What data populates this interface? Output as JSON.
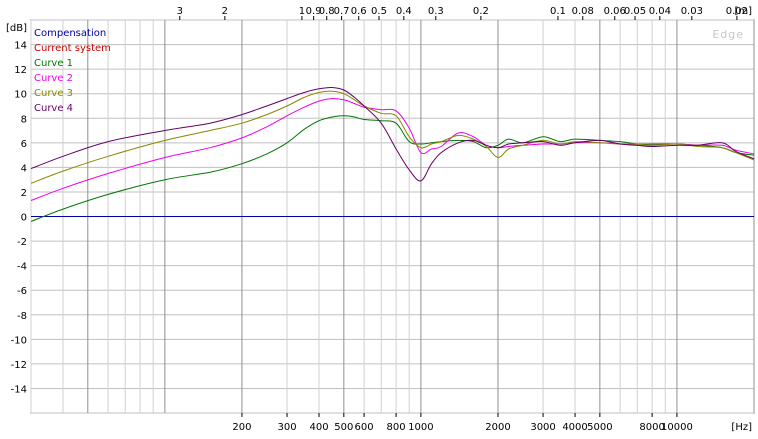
{
  "chart_data": {
    "type": "line",
    "title": "",
    "watermark": "Edge",
    "x_scale": "log",
    "xlabel": "[Hz]",
    "ylabel": "[dB]",
    "top_axis_unit": "[m]",
    "xlim": [
      30,
      20000
    ],
    "ylim": [
      -16,
      16
    ],
    "grid": true,
    "legend_position": "top-left",
    "bottom_ticks": [
      {
        "v": 200,
        "label": "200"
      },
      {
        "v": 300,
        "label": "300"
      },
      {
        "v": 400,
        "label": "400"
      },
      {
        "v": 500,
        "label": "500"
      },
      {
        "v": 600,
        "label": "600"
      },
      {
        "v": 800,
        "label": "800"
      },
      {
        "v": 1000,
        "label": "1000"
      },
      {
        "v": 2000,
        "label": "2000"
      },
      {
        "v": 3000,
        "label": "3000"
      },
      {
        "v": 4000,
        "label": "4000"
      },
      {
        "v": 5000,
        "label": "5000"
      },
      {
        "v": 8000,
        "label": "8000"
      },
      {
        "v": 10000,
        "label": "10000"
      }
    ],
    "top_ticks": [
      {
        "v": 3,
        "label": "3"
      },
      {
        "v": 2,
        "label": "2"
      },
      {
        "v": 1,
        "label": "1"
      },
      {
        "v": 0.9,
        "label": "0.9"
      },
      {
        "v": 0.8,
        "label": "0.8"
      },
      {
        "v": 0.7,
        "label": "0.7"
      },
      {
        "v": 0.6,
        "label": "0.6"
      },
      {
        "v": 0.5,
        "label": "0.5"
      },
      {
        "v": 0.4,
        "label": "0.4"
      },
      {
        "v": 0.3,
        "label": "0.3"
      },
      {
        "v": 0.2,
        "label": "0.2"
      },
      {
        "v": 0.1,
        "label": "0.1"
      },
      {
        "v": 0.08,
        "label": "0.08"
      },
      {
        "v": 0.06,
        "label": "0.06"
      },
      {
        "v": 0.05,
        "label": "0.05"
      },
      {
        "v": 0.04,
        "label": "0.04"
      },
      {
        "v": 0.03,
        "label": "0.03"
      },
      {
        "v": 0.02,
        "label": "0.02"
      }
    ],
    "y_ticks": [
      14,
      12,
      10,
      8,
      6,
      4,
      2,
      0,
      -2,
      -4,
      -6,
      -8,
      -10,
      -12,
      -14
    ],
    "series": [
      {
        "name": "Compensation",
        "color": "#0000aa",
        "x": [
          30,
          20000
        ],
        "y": [
          0,
          0
        ]
      },
      {
        "name": "Current system",
        "color": "#cc0000",
        "x": [],
        "y": []
      },
      {
        "name": "Curve 1",
        "color": "#007700",
        "x": [
          30,
          40,
          60,
          100,
          150,
          200,
          250,
          300,
          350,
          400,
          450,
          500,
          550,
          600,
          700,
          800,
          900,
          1000,
          1100,
          1200,
          1400,
          1600,
          1800,
          2000,
          2200,
          2500,
          3000,
          3500,
          4000,
          5000,
          6000,
          7000,
          8000,
          10000,
          12000,
          15000,
          17000,
          20000
        ],
        "y": [
          -0.4,
          0.6,
          1.8,
          3.0,
          3.6,
          4.3,
          5.1,
          6.0,
          7.1,
          7.8,
          8.1,
          8.2,
          8.1,
          7.9,
          7.8,
          7.6,
          6.1,
          5.9,
          6.0,
          6.1,
          6.2,
          6.1,
          5.6,
          5.8,
          6.3,
          6.0,
          6.5,
          6.1,
          6.3,
          6.2,
          6.1,
          5.9,
          5.9,
          5.9,
          5.8,
          5.6,
          5.2,
          5.0
        ]
      },
      {
        "name": "Curve 2",
        "color": "#ee00ee",
        "x": [
          30,
          40,
          60,
          100,
          150,
          200,
          250,
          300,
          350,
          400,
          450,
          500,
          550,
          600,
          700,
          800,
          900,
          1000,
          1100,
          1200,
          1400,
          1600,
          1800,
          2000,
          2200,
          2500,
          3000,
          3500,
          4000,
          5000,
          6000,
          7000,
          8000,
          10000,
          12000,
          15000,
          17000,
          20000
        ],
        "y": [
          1.3,
          2.3,
          3.5,
          4.8,
          5.6,
          6.4,
          7.3,
          8.2,
          8.9,
          9.4,
          9.6,
          9.5,
          9.2,
          8.9,
          8.7,
          8.6,
          7.2,
          5.2,
          5.5,
          5.7,
          6.8,
          6.5,
          5.8,
          5.6,
          5.7,
          5.8,
          5.9,
          5.9,
          6.0,
          6.0,
          5.9,
          5.8,
          5.8,
          5.9,
          5.8,
          5.8,
          5.4,
          5.1
        ]
      },
      {
        "name": "Curve 3",
        "color": "#888800",
        "x": [
          30,
          40,
          60,
          100,
          150,
          200,
          250,
          300,
          350,
          400,
          450,
          500,
          550,
          600,
          700,
          800,
          900,
          1000,
          1100,
          1200,
          1400,
          1600,
          1800,
          2000,
          2200,
          2500,
          3000,
          3500,
          4000,
          5000,
          6000,
          7000,
          8000,
          10000,
          12000,
          15000,
          17000,
          20000
        ],
        "y": [
          2.7,
          3.7,
          4.9,
          6.2,
          7.0,
          7.6,
          8.3,
          9.0,
          9.7,
          10.1,
          10.2,
          10.0,
          9.5,
          9.0,
          8.4,
          8.2,
          6.5,
          5.6,
          5.9,
          6.1,
          6.6,
          6.3,
          5.7,
          4.8,
          5.5,
          5.8,
          6.2,
          5.9,
          6.1,
          6.0,
          5.9,
          5.9,
          5.8,
          5.9,
          5.7,
          5.6,
          5.2,
          4.6
        ]
      },
      {
        "name": "Curve 4",
        "color": "#660066",
        "x": [
          30,
          40,
          60,
          100,
          150,
          200,
          250,
          300,
          350,
          400,
          450,
          500,
          550,
          600,
          700,
          800,
          900,
          1000,
          1100,
          1200,
          1400,
          1600,
          1800,
          2000,
          2200,
          2500,
          3000,
          3500,
          4000,
          5000,
          6000,
          7000,
          8000,
          10000,
          12000,
          15000,
          17000,
          20000
        ],
        "y": [
          3.9,
          4.9,
          6.1,
          7.0,
          7.6,
          8.3,
          9.0,
          9.6,
          10.1,
          10.4,
          10.5,
          10.3,
          9.7,
          9.0,
          7.6,
          5.5,
          3.8,
          2.9,
          4.3,
          5.2,
          6.0,
          6.2,
          5.8,
          5.6,
          5.9,
          6.0,
          6.1,
          5.8,
          6.0,
          6.2,
          5.9,
          5.8,
          5.7,
          5.8,
          5.8,
          6.0,
          5.3,
          4.7
        ]
      }
    ]
  }
}
